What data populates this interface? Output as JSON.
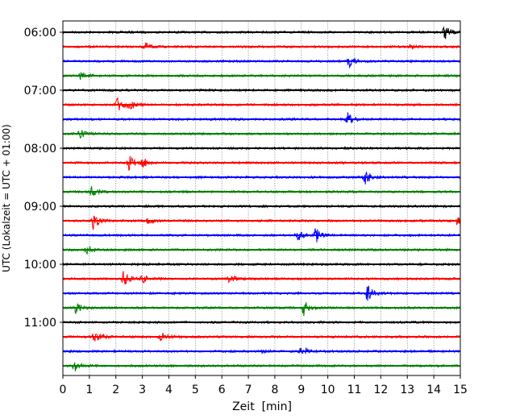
{
  "chart_data": {
    "type": "line",
    "subtype": "helicorder",
    "title": "",
    "xlabel": "Zeit  [min]",
    "ylabel": "UTC (Lokalzeit = UTC + 01:00)",
    "xlim": [
      0,
      15
    ],
    "xticks": [
      "0",
      "1",
      "2",
      "3",
      "4",
      "5",
      "6",
      "7",
      "8",
      "9",
      "10",
      "11",
      "12",
      "13",
      "14",
      "15"
    ],
    "yticks": [
      "06:00",
      "07:00",
      "08:00",
      "09:00",
      "10:00",
      "11:00"
    ],
    "grid": "vertical dotted at each minute",
    "trace_interval_min": 15,
    "colors": [
      "#000000",
      "#ff0000",
      "#0000ff",
      "#008000"
    ],
    "traces": [
      {
        "start": "06:00",
        "events": [
          {
            "t": 14.4,
            "amp": 0.9
          }
        ]
      },
      {
        "start": "06:15",
        "events": [
          {
            "t": 3.1,
            "amp": 0.5
          },
          {
            "t": 13.1,
            "amp": 0.2
          }
        ]
      },
      {
        "start": "06:30",
        "events": [
          {
            "t": 10.8,
            "amp": 0.8
          }
        ]
      },
      {
        "start": "06:45",
        "events": [
          {
            "t": 0.7,
            "amp": 0.6
          }
        ]
      },
      {
        "start": "07:00",
        "events": []
      },
      {
        "start": "07:15",
        "events": [
          {
            "t": 2.05,
            "amp": 1.0
          },
          {
            "t": 2.5,
            "amp": 0.5
          }
        ]
      },
      {
        "start": "07:30",
        "events": [
          {
            "t": 10.75,
            "amp": 1.0
          }
        ]
      },
      {
        "start": "07:45",
        "events": [
          {
            "t": 0.65,
            "amp": 0.6
          }
        ]
      },
      {
        "start": "08:00",
        "events": []
      },
      {
        "start": "08:15",
        "events": [
          {
            "t": 2.5,
            "amp": 1.0
          },
          {
            "t": 3.0,
            "amp": 0.7
          }
        ]
      },
      {
        "start": "08:30",
        "events": [
          {
            "t": 11.4,
            "amp": 1.0
          }
        ]
      },
      {
        "start": "08:45",
        "events": [
          {
            "t": 1.1,
            "amp": 0.6
          }
        ]
      },
      {
        "start": "09:00",
        "events": []
      },
      {
        "start": "09:15",
        "events": [
          {
            "t": 1.15,
            "amp": 1.0
          },
          {
            "t": 3.2,
            "amp": 0.5
          },
          {
            "t": 14.9,
            "amp": 0.6
          }
        ]
      },
      {
        "start": "09:30",
        "events": [
          {
            "t": 8.85,
            "amp": 0.8
          },
          {
            "t": 9.55,
            "amp": 0.9
          }
        ]
      },
      {
        "start": "09:45",
        "events": [
          {
            "t": 0.9,
            "amp": 0.6
          }
        ]
      },
      {
        "start": "10:00",
        "events": []
      },
      {
        "start": "10:15",
        "events": [
          {
            "t": 2.3,
            "amp": 1.0
          },
          {
            "t": 3.0,
            "amp": 0.5
          },
          {
            "t": 6.3,
            "amp": 0.6
          }
        ]
      },
      {
        "start": "10:30",
        "events": [
          {
            "t": 11.5,
            "amp": 1.0
          }
        ]
      },
      {
        "start": "10:45",
        "events": [
          {
            "t": 0.5,
            "amp": 0.7
          },
          {
            "t": 9.1,
            "amp": 1.0
          }
        ]
      },
      {
        "start": "11:00",
        "events": []
      },
      {
        "start": "11:15",
        "events": [
          {
            "t": 1.2,
            "amp": 1.0
          },
          {
            "t": 3.7,
            "amp": 0.6
          }
        ]
      },
      {
        "start": "11:30",
        "events": [
          {
            "t": 7.5,
            "amp": 0.2
          },
          {
            "t": 9.0,
            "amp": 0.9
          }
        ]
      },
      {
        "start": "11:45",
        "events": [
          {
            "t": 0.45,
            "amp": 0.7
          }
        ]
      }
    ]
  }
}
